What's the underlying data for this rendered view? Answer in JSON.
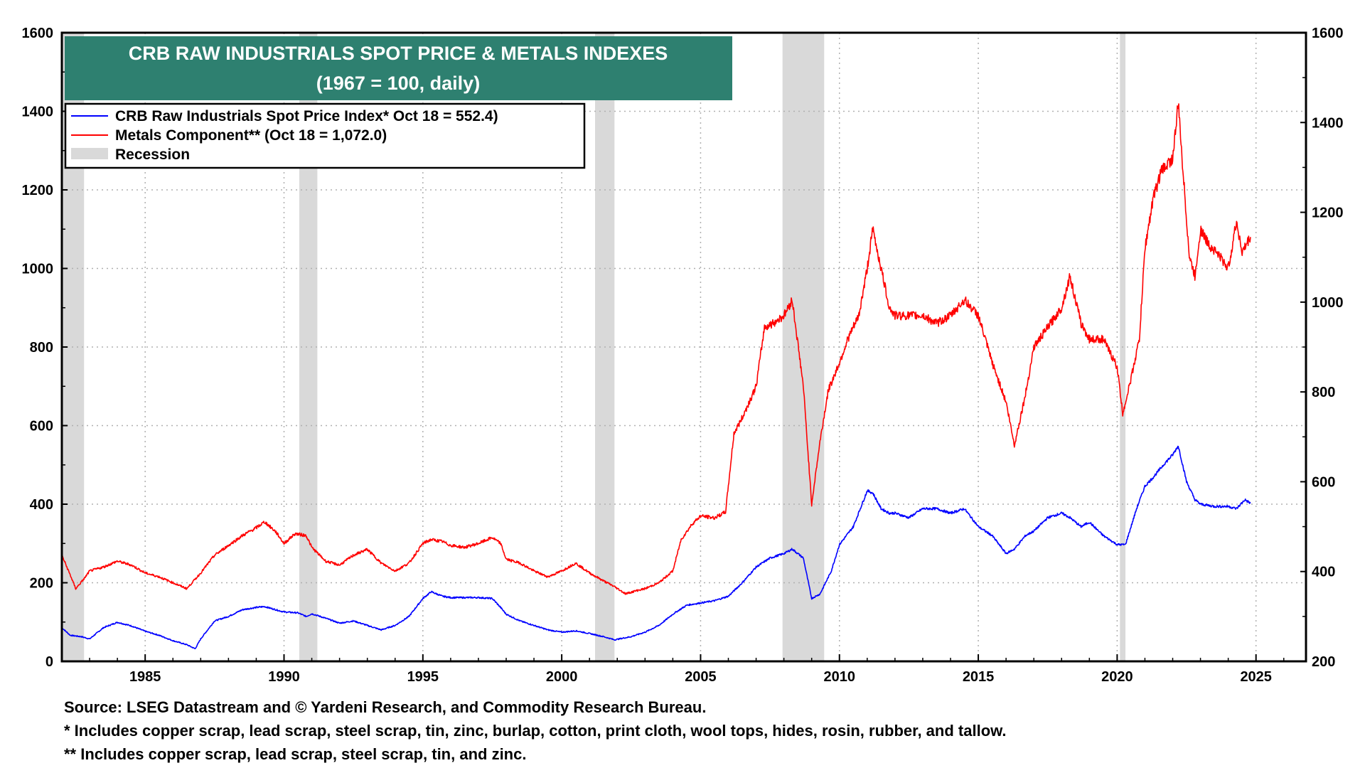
{
  "chart_data": {
    "type": "line",
    "title": "CRB RAW INDUSTRIALS SPOT PRICE & METALS INDEXES",
    "subtitle": "(1967 = 100, daily)",
    "left_axis": {
      "ylim": [
        0,
        1600
      ],
      "ticks": [
        0,
        200,
        400,
        600,
        800,
        1000,
        1200,
        1400,
        1600
      ]
    },
    "right_axis": {
      "ylim": [
        200,
        1600
      ],
      "ticks": [
        200,
        400,
        600,
        800,
        1000,
        1200,
        1400,
        1600
      ]
    },
    "x_axis": {
      "xlim": [
        1982.0,
        2026.8
      ],
      "ticks": [
        1985,
        1990,
        1995,
        2000,
        2005,
        2010,
        2015,
        2020,
        2025
      ]
    },
    "grid": true,
    "legend": {
      "placement": "top-left",
      "entries": [
        "CRB Raw Industrials Spot Price Index* Oct 18 = 552.4)",
        "Metals Component** (Oct 18 = 1,072.0)",
        "Recession"
      ]
    },
    "recessions": [
      [
        1982.0,
        1982.8
      ],
      [
        1990.55,
        1991.2
      ],
      [
        2001.2,
        2001.9
      ],
      [
        2007.95,
        2009.45
      ],
      [
        2020.1,
        2020.3
      ]
    ],
    "series": [
      {
        "name": "CRB Raw Industrials Spot Price Index* Oct 18 = 552.4)",
        "color": "#0000ff",
        "axis": "right",
        "x": [
          1982.0,
          1982.3,
          1982.7,
          1983.0,
          1983.5,
          1984.0,
          1984.5,
          1985.0,
          1985.5,
          1986.0,
          1986.5,
          1986.8,
          1987.0,
          1987.5,
          1988.0,
          1988.5,
          1989.0,
          1989.3,
          1989.7,
          1990.0,
          1990.5,
          1990.8,
          1991.0,
          1991.5,
          1992.0,
          1992.5,
          1993.0,
          1993.5,
          1994.0,
          1994.5,
          1995.0,
          1995.3,
          1995.7,
          1996.0,
          1996.5,
          1997.0,
          1997.5,
          1997.8,
          1998.0,
          1998.5,
          1999.0,
          1999.5,
          2000.0,
          2000.5,
          2001.0,
          2001.5,
          2001.9,
          2002.5,
          2003.0,
          2003.5,
          2004.0,
          2004.5,
          2005.0,
          2005.5,
          2006.0,
          2006.5,
          2007.0,
          2007.5,
          2008.0,
          2008.3,
          2008.7,
          2009.0,
          2009.3,
          2009.7,
          2010.0,
          2010.5,
          2011.0,
          2011.2,
          2011.5,
          2011.8,
          2012.0,
          2012.5,
          2013.0,
          2013.5,
          2014.0,
          2014.5,
          2015.0,
          2015.5,
          2016.0,
          2016.3,
          2016.7,
          2017.0,
          2017.5,
          2018.0,
          2018.3,
          2018.7,
          2019.0,
          2019.5,
          2020.0,
          2020.3,
          2020.7,
          2021.0,
          2021.3,
          2021.7,
          2022.0,
          2022.2,
          2022.5,
          2022.8,
          2023.0,
          2023.5,
          2024.0,
          2024.3,
          2024.6,
          2024.8
        ],
        "values": [
          275,
          258,
          255,
          250,
          275,
          287,
          279,
          267,
          258,
          246,
          237,
          228,
          250,
          290,
          300,
          315,
          320,
          322,
          315,
          310,
          308,
          300,
          306,
          296,
          285,
          290,
          280,
          270,
          280,
          300,
          340,
          355,
          345,
          342,
          342,
          342,
          340,
          320,
          305,
          290,
          280,
          270,
          265,
          268,
          262,
          255,
          248,
          255,
          265,
          280,
          305,
          325,
          330,
          335,
          345,
          375,
          410,
          430,
          440,
          450,
          430,
          340,
          350,
          400,
          460,
          500,
          580,
          575,
          540,
          530,
          530,
          520,
          540,
          540,
          530,
          540,
          500,
          480,
          440,
          450,
          480,
          490,
          520,
          530,
          520,
          500,
          510,
          480,
          460,
          460,
          540,
          590,
          610,
          640,
          660,
          680,
          600,
          560,
          550,
          545,
          545,
          540,
          560,
          552
        ]
      },
      {
        "name": "Metals Component** (Oct 18 = 1,072.0)",
        "color": "#ff0000",
        "axis": "left",
        "x": [
          1982.0,
          1982.3,
          1982.5,
          1982.8,
          1983.0,
          1983.5,
          1984.0,
          1984.5,
          1985.0,
          1985.5,
          1986.0,
          1986.5,
          1987.0,
          1987.5,
          1988.0,
          1988.5,
          1989.0,
          1989.3,
          1989.7,
          1990.0,
          1990.4,
          1990.8,
          1991.0,
          1991.5,
          1992.0,
          1992.5,
          1993.0,
          1993.5,
          1994.0,
          1994.5,
          1995.0,
          1995.3,
          1995.7,
          1996.0,
          1996.5,
          1997.0,
          1997.5,
          1997.8,
          1998.0,
          1998.5,
          1999.0,
          1999.5,
          2000.0,
          2000.5,
          2001.0,
          2001.5,
          2001.9,
          2002.3,
          2002.7,
          2003.0,
          2003.5,
          2004.0,
          2004.3,
          2004.7,
          2005.0,
          2005.5,
          2005.9,
          2006.2,
          2006.5,
          2007.0,
          2007.3,
          2007.6,
          2008.0,
          2008.3,
          2008.7,
          2009.0,
          2009.3,
          2009.6,
          2010.0,
          2010.3,
          2010.7,
          2011.0,
          2011.2,
          2011.5,
          2011.8,
          2012.0,
          2012.5,
          2013.0,
          2013.5,
          2014.0,
          2014.5,
          2015.0,
          2015.5,
          2016.0,
          2016.3,
          2016.7,
          2017.0,
          2017.5,
          2018.0,
          2018.3,
          2018.7,
          2019.0,
          2019.5,
          2020.0,
          2020.2,
          2020.5,
          2020.8,
          2021.0,
          2021.3,
          2021.6,
          2022.0,
          2022.2,
          2022.4,
          2022.6,
          2022.8,
          2023.0,
          2023.3,
          2023.6,
          2024.0,
          2024.3,
          2024.5,
          2024.8
        ],
        "values": [
          270,
          220,
          185,
          210,
          230,
          240,
          255,
          245,
          225,
          215,
          200,
          185,
          225,
          270,
          295,
          320,
          340,
          355,
          330,
          300,
          325,
          320,
          290,
          255,
          245,
          270,
          285,
          250,
          230,
          250,
          300,
          310,
          305,
          295,
          290,
          300,
          315,
          300,
          260,
          250,
          230,
          215,
          230,
          250,
          225,
          205,
          190,
          172,
          180,
          185,
          200,
          230,
          310,
          350,
          370,
          365,
          380,
          580,
          620,
          700,
          850,
          860,
          880,
          920,
          700,
          400,
          560,
          690,
          760,
          820,
          880,
          1000,
          1100,
          1000,
          900,
          880,
          880,
          880,
          860,
          880,
          920,
          880,
          760,
          660,
          550,
          680,
          800,
          850,
          900,
          980,
          860,
          820,
          820,
          750,
          630,
          720,
          820,
          1050,
          1180,
          1250,
          1280,
          1420,
          1220,
          1030,
          980,
          1100,
          1060,
          1040,
          1000,
          1120,
          1040,
          1080
        ]
      }
    ]
  },
  "footer": {
    "source": "Source: LSEG Datastream and © Yardeni Research, and Commodity Research Bureau.",
    "note1": "* Includes copper scrap, lead scrap, steel scrap, tin, zinc, burlap, cotton, print cloth, wool tops, hides, rosin, rubber, and tallow.",
    "note2": "** Includes copper scrap, lead scrap, steel scrap, tin, and zinc."
  },
  "colors": {
    "title_bg": "#2e8070",
    "title_text": "#ffffff",
    "recession": "#d9d9d9",
    "grid": "#b0b0b0"
  }
}
